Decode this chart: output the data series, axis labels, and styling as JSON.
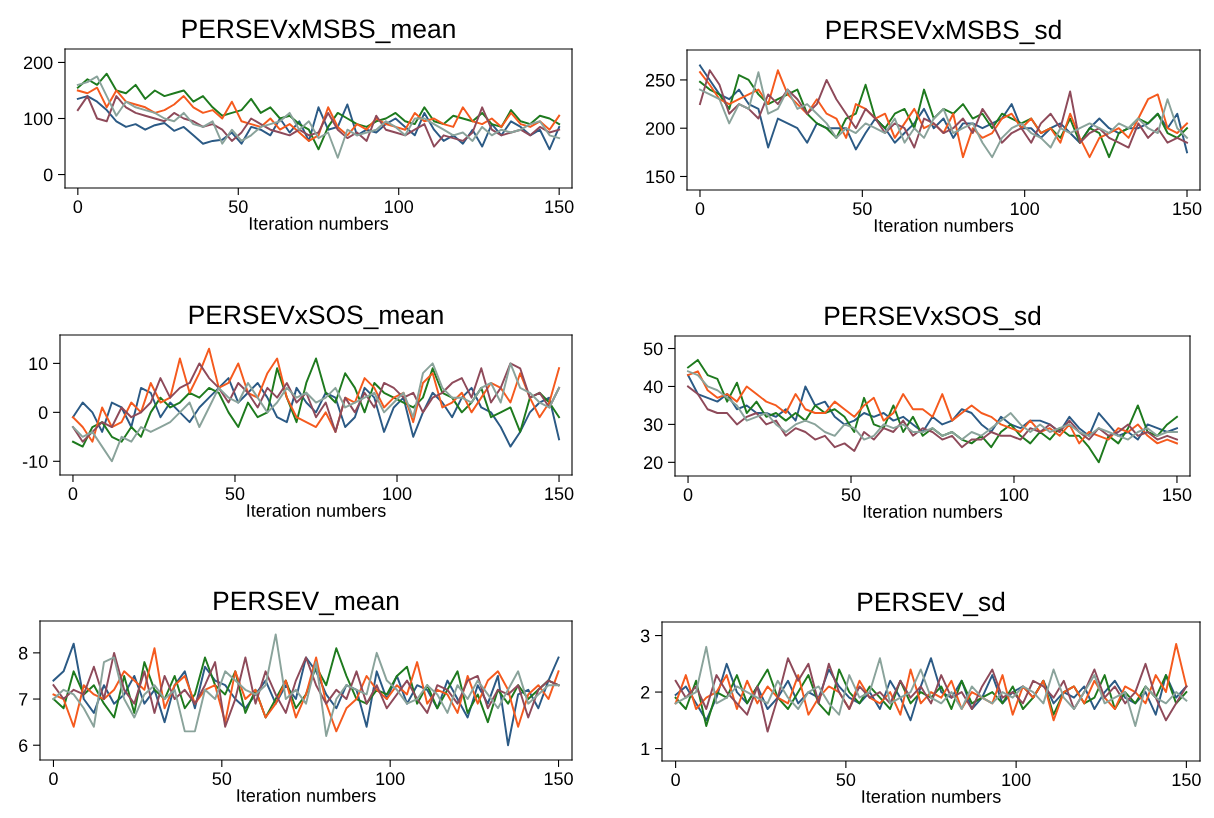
{
  "chart_data": [
    {
      "type": "line",
      "title": "PERSEVxMSBS_mean",
      "xlabel": "Iteration numbers",
      "xlim": [
        -4,
        154
      ],
      "xticks": [
        0,
        50,
        100,
        150
      ],
      "ylim": [
        -24,
        224
      ],
      "yticks": [
        0,
        100,
        200
      ],
      "line_style": "solid",
      "marker": "none",
      "x": [
        0,
        3,
        6,
        9,
        12,
        15,
        18,
        21,
        24,
        27,
        30,
        33,
        36,
        39,
        42,
        45,
        48,
        51,
        54,
        57,
        60,
        63,
        66,
        69,
        72,
        75,
        78,
        81,
        84,
        87,
        90,
        93,
        96,
        99,
        102,
        105,
        108,
        111,
        114,
        117,
        120,
        123,
        126,
        129,
        132,
        135,
        138,
        141,
        144,
        147,
        150
      ],
      "series": [
        {
          "color": "#2b5a85",
          "values": [
            135,
            140,
            130,
            115,
            95,
            85,
            90,
            80,
            88,
            92,
            78,
            85,
            70,
            55,
            60,
            62,
            75,
            55,
            85,
            80,
            70,
            100,
            75,
            95,
            60,
            120,
            80,
            85,
            125,
            70,
            80,
            75,
            90,
            100,
            85,
            70,
            110,
            80,
            60,
            70,
            55,
            80,
            50,
            90,
            70,
            95,
            85,
            70,
            80,
            45,
            85
          ]
        },
        {
          "color": "#1e7a1e",
          "values": [
            155,
            170,
            160,
            180,
            150,
            145,
            160,
            135,
            150,
            140,
            145,
            150,
            130,
            140,
            120,
            105,
            110,
            115,
            135,
            110,
            120,
            100,
            105,
            90,
            80,
            45,
            85,
            110,
            100,
            90,
            85,
            95,
            100,
            110,
            95,
            90,
            120,
            95,
            90,
            105,
            100,
            95,
            110,
            90,
            85,
            115,
            95,
            90,
            105,
            100,
            90
          ]
        },
        {
          "color": "#f55a1e",
          "values": [
            150,
            145,
            155,
            120,
            150,
            130,
            125,
            120,
            110,
            115,
            125,
            140,
            120,
            110,
            115,
            100,
            130,
            95,
            90,
            85,
            100,
            80,
            90,
            75,
            60,
            70,
            120,
            85,
            70,
            90,
            80,
            100,
            90,
            85,
            80,
            110,
            95,
            100,
            90,
            85,
            120,
            95,
            90,
            100,
            85,
            110,
            90,
            85,
            95,
            80,
            105
          ]
        },
        {
          "color": "#8e4a5a",
          "values": [
            115,
            140,
            100,
            95,
            140,
            120,
            110,
            105,
            100,
            95,
            110,
            100,
            95,
            85,
            90,
            80,
            60,
            75,
            100,
            90,
            80,
            75,
            70,
            80,
            70,
            75,
            110,
            80,
            65,
            75,
            60,
            105,
            80,
            75,
            70,
            80,
            90,
            50,
            70,
            65,
            60,
            75,
            120,
            80,
            70,
            75,
            80,
            70,
            85,
            75,
            80
          ]
        },
        {
          "color": "#8aa39b",
          "values": [
            160,
            165,
            175,
            140,
            105,
            130,
            120,
            115,
            110,
            100,
            95,
            110,
            90,
            85,
            95,
            55,
            80,
            60,
            70,
            85,
            90,
            95,
            110,
            80,
            95,
            65,
            75,
            30,
            80,
            70,
            75,
            80,
            95,
            85,
            70,
            100,
            100,
            90,
            80,
            70,
            75,
            60,
            85,
            70,
            80,
            75,
            80,
            90,
            95,
            70,
            65
          ]
        }
      ]
    },
    {
      "type": "line",
      "title": "PERSEVxMSBS_sd",
      "xlabel": "Iteration numbers",
      "xlim": [
        -4,
        154
      ],
      "xticks": [
        0,
        50,
        100,
        150
      ],
      "ylim": [
        136,
        281
      ],
      "yticks": [
        150,
        200,
        250
      ],
      "line_style": "solid",
      "marker": "none",
      "x": [
        0,
        3,
        6,
        9,
        12,
        15,
        18,
        21,
        24,
        27,
        30,
        33,
        36,
        39,
        42,
        45,
        48,
        51,
        54,
        57,
        60,
        63,
        66,
        69,
        72,
        75,
        78,
        81,
        84,
        87,
        90,
        93,
        96,
        99,
        102,
        105,
        108,
        111,
        114,
        117,
        120,
        123,
        126,
        129,
        132,
        135,
        138,
        141,
        144,
        147,
        150
      ],
      "series": [
        {
          "color": "#2b5a85",
          "values": [
            265,
            250,
            235,
            230,
            240,
            225,
            220,
            180,
            210,
            205,
            200,
            185,
            205,
            200,
            200,
            200,
            178,
            195,
            210,
            200,
            185,
            195,
            205,
            220,
            200,
            210,
            190,
            205,
            205,
            200,
            205,
            210,
            225,
            200,
            200,
            190,
            200,
            205,
            195,
            185,
            200,
            210,
            200,
            195,
            200,
            200,
            205,
            215,
            200,
            215,
            175
          ]
        },
        {
          "color": "#1e7a1e",
          "values": [
            248,
            240,
            235,
            220,
            255,
            250,
            235,
            225,
            230,
            235,
            240,
            215,
            205,
            200,
            190,
            210,
            215,
            245,
            210,
            200,
            215,
            220,
            200,
            240,
            210,
            220,
            215,
            225,
            210,
            215,
            200,
            215,
            210,
            205,
            210,
            195,
            200,
            190,
            210,
            185,
            200,
            195,
            170,
            195,
            200,
            210,
            205,
            215,
            195,
            190,
            200
          ]
        },
        {
          "color": "#f55a1e",
          "values": [
            258,
            245,
            230,
            225,
            230,
            235,
            240,
            225,
            260,
            235,
            225,
            215,
            230,
            215,
            210,
            190,
            225,
            220,
            210,
            215,
            190,
            205,
            220,
            200,
            205,
            195,
            215,
            170,
            200,
            190,
            195,
            210,
            215,
            200,
            210,
            195,
            200,
            185,
            215,
            190,
            170,
            190,
            195,
            200,
            190,
            210,
            230,
            235,
            200,
            195,
            205
          ]
        },
        {
          "color": "#8e4a5a",
          "values": [
            225,
            260,
            245,
            215,
            225,
            220,
            210,
            235,
            225,
            240,
            230,
            215,
            225,
            250,
            230,
            215,
            200,
            220,
            210,
            195,
            205,
            200,
            180,
            210,
            205,
            195,
            200,
            210,
            195,
            220,
            205,
            185,
            195,
            200,
            185,
            205,
            215,
            200,
            238,
            185,
            195,
            200,
            190,
            185,
            180,
            205,
            190,
            200,
            185,
            190,
            185
          ]
        },
        {
          "color": "#8aa39b",
          "values": [
            240,
            235,
            230,
            205,
            225,
            220,
            258,
            215,
            220,
            240,
            220,
            225,
            215,
            205,
            190,
            200,
            195,
            205,
            200,
            195,
            210,
            185,
            200,
            190,
            210,
            220,
            195,
            200,
            205,
            185,
            170,
            190,
            200,
            205,
            195,
            190,
            180,
            200,
            195,
            200,
            205,
            200,
            195,
            205,
            200,
            210,
            200,
            195,
            230,
            200,
            190
          ]
        }
      ]
    },
    {
      "type": "line",
      "title": "PERSEVxSOS_mean",
      "xlabel": "Iteration numbers",
      "xlim": [
        -4,
        154
      ],
      "xticks": [
        0,
        50,
        100,
        150
      ],
      "ylim": [
        -12.8,
        15.8
      ],
      "yticks": [
        -10,
        0,
        10
      ],
      "line_style": "solid",
      "marker": "none",
      "x": [
        0,
        3,
        6,
        9,
        12,
        15,
        18,
        21,
        24,
        27,
        30,
        33,
        36,
        39,
        42,
        45,
        48,
        51,
        54,
        57,
        60,
        63,
        66,
        69,
        72,
        75,
        78,
        81,
        84,
        87,
        90,
        93,
        96,
        99,
        102,
        105,
        108,
        111,
        114,
        117,
        120,
        123,
        126,
        129,
        132,
        135,
        138,
        141,
        144,
        147,
        150
      ],
      "series": [
        {
          "color": "#2b5a85",
          "values": [
            -1,
            2,
            0,
            -4,
            2,
            1,
            -3,
            5,
            4,
            -1,
            2,
            0,
            -2,
            1,
            3,
            5,
            7,
            2,
            4,
            6,
            3,
            -1,
            -2,
            5,
            2,
            0,
            4,
            3,
            -3,
            -1,
            5,
            3,
            -4,
            1,
            3,
            -5,
            0,
            4,
            2,
            -1,
            3,
            5,
            1,
            0,
            -3,
            -7,
            -4,
            0,
            2,
            3,
            -5.5
          ]
        },
        {
          "color": "#1e7a1e",
          "values": [
            -6,
            -7,
            -3,
            -2,
            -5,
            -6,
            -3,
            -5,
            0,
            3,
            1,
            2,
            4,
            3,
            5,
            4,
            0,
            -3,
            2,
            -1,
            0,
            9,
            3,
            -2,
            6,
            11,
            4,
            2,
            8,
            5,
            0,
            6,
            4,
            3,
            2,
            1,
            3,
            9,
            4,
            3,
            0,
            2,
            5,
            -1,
            0,
            1,
            -4,
            3,
            4,
            2,
            -1
          ]
        },
        {
          "color": "#f55a1e",
          "values": [
            -1,
            -3,
            -6,
            1,
            -3,
            -2,
            2,
            0,
            6,
            2,
            3,
            11,
            4,
            8,
            13,
            5,
            6,
            10,
            4,
            3,
            8,
            11,
            3,
            -1,
            -2,
            -3,
            0,
            -4,
            3,
            2,
            7,
            5,
            1,
            3,
            4,
            -2,
            6,
            8,
            1,
            2,
            4,
            0,
            3,
            6,
            5,
            2,
            8,
            3,
            -1,
            2,
            9
          ]
        },
        {
          "color": "#8e4a5a",
          "values": [
            -3,
            -6,
            -4,
            -2,
            -3,
            1,
            -1,
            0,
            2,
            7,
            3,
            5,
            6,
            10,
            7,
            5,
            2,
            6,
            4,
            1,
            5,
            3,
            6,
            2,
            4,
            -1,
            2,
            -4,
            3,
            0,
            4,
            1,
            6,
            5,
            3,
            4,
            0,
            3,
            4,
            6,
            7,
            3,
            9,
            2,
            5,
            10,
            9,
            3,
            4,
            1,
            5
          ]
        },
        {
          "color": "#8aa39b",
          "values": [
            -3,
            -5,
            -4,
            -7,
            -10,
            -5,
            -6,
            -3,
            -4,
            -3,
            -2,
            0,
            2,
            -3,
            1,
            5,
            3,
            2,
            6,
            3,
            0,
            2,
            5,
            3,
            4,
            2,
            3,
            5,
            1,
            2,
            3,
            4,
            0,
            2,
            4,
            -1,
            8,
            10,
            5,
            3,
            3,
            2,
            5,
            6,
            2,
            10,
            5,
            4,
            2,
            1,
            5
          ]
        }
      ]
    },
    {
      "type": "line",
      "title": "PERSEVxSOS_sd",
      "xlabel": "Iteration numbers",
      "xlim": [
        -4,
        154
      ],
      "xticks": [
        0,
        50,
        100,
        150
      ],
      "ylim": [
        16.4,
        53.3
      ],
      "yticks": [
        20,
        30,
        40,
        50
      ],
      "line_style": "solid",
      "marker": "none",
      "x": [
        0,
        3,
        6,
        9,
        12,
        15,
        18,
        21,
        24,
        27,
        30,
        33,
        36,
        39,
        42,
        45,
        48,
        51,
        54,
        57,
        60,
        63,
        66,
        69,
        72,
        75,
        78,
        81,
        84,
        87,
        90,
        93,
        96,
        99,
        102,
        105,
        108,
        111,
        114,
        117,
        120,
        123,
        126,
        129,
        132,
        135,
        138,
        141,
        144,
        147,
        150
      ],
      "series": [
        {
          "color": "#2b5a85",
          "values": [
            43,
            38,
            37,
            36,
            38,
            34,
            35,
            33,
            33,
            32,
            34,
            31,
            40,
            35,
            36,
            32,
            30,
            31,
            33,
            32,
            33,
            31,
            32,
            30,
            28,
            32,
            30,
            31,
            34,
            33,
            30,
            28,
            32,
            30,
            29,
            31,
            31,
            30,
            28,
            32,
            29,
            27,
            33,
            30,
            27,
            28,
            26,
            30,
            29,
            28,
            29
          ]
        },
        {
          "color": "#1e7a1e",
          "values": [
            45,
            47,
            43,
            42,
            36,
            41,
            33,
            36,
            32,
            33,
            31,
            33,
            31,
            35,
            33,
            34,
            32,
            28,
            37,
            30,
            29,
            35,
            28,
            32,
            27,
            29,
            27,
            28,
            26,
            25,
            27,
            24,
            28,
            30,
            27,
            25,
            28,
            26,
            29,
            27,
            27,
            24,
            20,
            27,
            25,
            29,
            35,
            28,
            27,
            30,
            32
          ]
        },
        {
          "color": "#f55a1e",
          "values": [
            43,
            44,
            39,
            37,
            38,
            36,
            40,
            38,
            36,
            35,
            33,
            38,
            34,
            33,
            33,
            36,
            34,
            32,
            35,
            37,
            31,
            33,
            38,
            34,
            34,
            32,
            38,
            31,
            33,
            35,
            33,
            32,
            30,
            29,
            28,
            31,
            28,
            29,
            27,
            30,
            25,
            28,
            27,
            26,
            29,
            28,
            30,
            27,
            25,
            26,
            25
          ]
        },
        {
          "color": "#8e4a5a",
          "values": [
            40,
            38,
            34,
            33,
            33,
            30,
            32,
            33,
            30,
            31,
            27,
            29,
            28,
            26,
            27,
            24,
            25,
            23,
            28,
            26,
            29,
            28,
            31,
            27,
            29,
            28,
            26,
            27,
            24,
            26,
            26,
            28,
            27,
            27,
            26,
            29,
            28,
            30,
            28,
            31,
            28,
            26,
            29,
            27,
            28,
            30,
            27,
            28,
            26,
            27,
            26
          ]
        },
        {
          "color": "#8aa39b",
          "values": [
            44,
            43,
            40,
            39,
            37,
            35,
            31,
            32,
            33,
            30,
            28,
            30,
            31,
            30,
            28,
            27,
            30,
            29,
            26,
            27,
            30,
            29,
            30,
            28,
            28,
            29,
            27,
            28,
            26,
            28,
            27,
            29,
            31,
            33,
            30,
            28,
            30,
            28,
            29,
            30,
            28,
            27,
            29,
            28,
            27,
            26,
            28,
            29,
            27,
            28,
            28
          ]
        }
      ]
    },
    {
      "type": "line",
      "title": "PERSEV_mean",
      "xlabel": "Iteration numbers",
      "xlim": [
        -4,
        154
      ],
      "xticks": [
        0,
        50,
        100,
        150
      ],
      "ylim": [
        5.68,
        8.69
      ],
      "yticks": [
        6,
        7,
        8
      ],
      "line_style": "solid",
      "marker": "none",
      "x": [
        0,
        3,
        6,
        9,
        12,
        15,
        18,
        21,
        24,
        27,
        30,
        33,
        36,
        39,
        42,
        45,
        48,
        51,
        54,
        57,
        60,
        63,
        66,
        69,
        72,
        75,
        78,
        81,
        84,
        87,
        90,
        93,
        96,
        99,
        102,
        105,
        108,
        111,
        114,
        117,
        120,
        123,
        126,
        129,
        132,
        135,
        138,
        141,
        144,
        147,
        150
      ],
      "series": [
        {
          "color": "#2b5a85",
          "values": [
            7.4,
            7.6,
            8.2,
            7.0,
            6.7,
            7.3,
            6.9,
            7.1,
            7.5,
            6.9,
            7.2,
            6.5,
            7.3,
            7.6,
            6.8,
            7.7,
            7.4,
            7.3,
            7.0,
            6.8,
            7.1,
            7.4,
            6.9,
            7.3,
            7.0,
            7.9,
            7.6,
            7.1,
            6.8,
            7.3,
            7.2,
            6.4,
            7.6,
            7.0,
            7.5,
            6.9,
            7.3,
            7.2,
            6.8,
            7.4,
            7.0,
            6.6,
            7.3,
            6.9,
            7.5,
            6.0,
            7.1,
            7.2,
            6.8,
            7.4,
            7.9
          ]
        },
        {
          "color": "#1e7a1e",
          "values": [
            7.0,
            6.8,
            7.6,
            7.1,
            7.3,
            6.9,
            6.6,
            7.5,
            6.7,
            7.8,
            7.2,
            7.0,
            7.5,
            6.8,
            7.1,
            7.9,
            7.3,
            7.1,
            7.6,
            6.7,
            7.2,
            6.6,
            7.0,
            7.4,
            6.8,
            7.1,
            7.7,
            7.3,
            8.1,
            7.5,
            7.0,
            6.9,
            7.2,
            7.1,
            7.5,
            7.7,
            6.9,
            7.3,
            6.8,
            7.2,
            7.6,
            6.7,
            7.1,
            6.5,
            7.2,
            6.9,
            7.3,
            7.0,
            7.2,
            7.4,
            7.3
          ]
        },
        {
          "color": "#f55a1e",
          "values": [
            7.1,
            7.0,
            6.4,
            7.3,
            7.1,
            7.0,
            7.2,
            7.6,
            7.4,
            7.2,
            8.1,
            6.8,
            7.3,
            7.5,
            6.9,
            7.2,
            7.3,
            6.5,
            7.6,
            7.0,
            7.2,
            6.6,
            6.9,
            7.4,
            6.6,
            7.1,
            7.9,
            6.9,
            6.3,
            6.8,
            7.0,
            7.5,
            7.2,
            7.0,
            7.3,
            7.1,
            7.8,
            6.9,
            7.2,
            7.1,
            6.7,
            7.5,
            6.9,
            7.4,
            7.6,
            7.2,
            6.4,
            7.1,
            7.3,
            7.0,
            7.6
          ]
        },
        {
          "color": "#8e4a5a",
          "values": [
            7.3,
            7.0,
            7.2,
            7.1,
            7.7,
            7.0,
            8.0,
            7.2,
            6.9,
            7.6,
            6.7,
            7.5,
            7.0,
            7.2,
            6.9,
            7.3,
            7.8,
            6.4,
            7.0,
            7.9,
            6.9,
            7.6,
            7.1,
            6.7,
            7.4,
            7.9,
            7.3,
            6.9,
            7.2,
            7.0,
            7.6,
            6.9,
            7.3,
            6.8,
            7.1,
            7.4,
            7.0,
            6.7,
            7.3,
            7.2,
            6.9,
            7.4,
            7.5,
            6.8,
            7.2,
            7.1,
            7.3,
            6.6,
            7.2,
            7.4,
            7.3
          ]
        },
        {
          "color": "#8aa39b",
          "values": [
            7.0,
            7.2,
            7.1,
            6.8,
            6.4,
            7.8,
            7.9,
            7.0,
            6.6,
            7.1,
            7.3,
            7.0,
            7.2,
            6.3,
            6.3,
            7.2,
            7.0,
            7.6,
            7.4,
            7.2,
            7.1,
            7.3,
            8.4,
            7.0,
            7.2,
            6.9,
            7.8,
            6.2,
            7.0,
            7.3,
            7.2,
            7.1,
            8.0,
            7.4,
            7.2,
            6.9,
            7.0,
            7.3,
            7.1,
            6.7,
            7.3,
            7.0,
            7.4,
            7.1,
            6.8,
            7.2,
            7.6,
            6.9,
            7.1,
            7.3,
            7.3
          ]
        }
      ]
    },
    {
      "type": "line",
      "title": "PERSEV_sd",
      "xlabel": "Iteration numbers",
      "xlim": [
        -4,
        154
      ],
      "xticks": [
        0,
        50,
        100,
        150
      ],
      "ylim": [
        0.78,
        3.24
      ],
      "yticks": [
        1,
        2,
        3
      ],
      "line_style": "solid",
      "marker": "none",
      "x": [
        0,
        3,
        6,
        9,
        12,
        15,
        18,
        21,
        24,
        27,
        30,
        33,
        36,
        39,
        42,
        45,
        48,
        51,
        54,
        57,
        60,
        63,
        66,
        69,
        72,
        75,
        78,
        81,
        84,
        87,
        90,
        93,
        96,
        99,
        102,
        105,
        108,
        111,
        114,
        117,
        120,
        123,
        126,
        129,
        132,
        135,
        138,
        141,
        144,
        147,
        150
      ],
      "series": [
        {
          "color": "#2b5a85",
          "values": [
            1.95,
            2.1,
            1.8,
            1.5,
            1.9,
            2.5,
            2.0,
            1.8,
            2.1,
            1.7,
            1.9,
            2.2,
            1.8,
            2.0,
            1.9,
            2.4,
            2.1,
            1.9,
            1.8,
            2.0,
            1.7,
            2.2,
            1.9,
            1.5,
            2.1,
            2.6,
            2.0,
            1.9,
            2.2,
            1.7,
            1.9,
            2.3,
            1.8,
            2.0,
            2.1,
            1.9,
            2.2,
            1.8,
            2.0,
            1.9,
            2.1,
            1.7,
            2.0,
            2.2,
            1.9,
            1.8,
            2.0,
            1.6,
            2.3,
            1.9,
            2.1
          ]
        },
        {
          "color": "#1e7a1e",
          "values": [
            1.9,
            1.7,
            2.2,
            1.4,
            2.0,
            1.9,
            2.3,
            1.8,
            2.1,
            2.4,
            1.9,
            1.7,
            2.0,
            2.3,
            1.8,
            1.6,
            2.4,
            2.0,
            1.8,
            2.1,
            1.9,
            1.7,
            2.2,
            1.8,
            2.0,
            1.9,
            2.1,
            1.7,
            2.2,
            1.8,
            1.9,
            2.0,
            1.8,
            2.1,
            1.7,
            1.9,
            2.2,
            1.6,
            2.0,
            2.1,
            1.8,
            1.9,
            2.3,
            1.7,
            2.0,
            1.8,
            2.1,
            1.9,
            2.3,
            1.8,
            2.0
          ]
        },
        {
          "color": "#f55a1e",
          "values": [
            1.8,
            2.3,
            1.7,
            1.9,
            2.0,
            2.3,
            1.7,
            2.2,
            1.8,
            2.1,
            1.9,
            1.8,
            2.3,
            1.6,
            1.9,
            2.1,
            2.0,
            1.7,
            2.2,
            1.9,
            1.8,
            2.0,
            1.6,
            2.4,
            1.8,
            2.0,
            1.9,
            2.2,
            1.7,
            2.0,
            1.9,
            1.8,
            2.3,
            1.6,
            2.1,
            1.9,
            2.2,
            1.5,
            2.0,
            2.1,
            1.8,
            2.2,
            1.9,
            1.7,
            2.1,
            2.0,
            1.8,
            2.3,
            2.0,
            2.85,
            2.1
          ]
        },
        {
          "color": "#8e4a5a",
          "values": [
            2.2,
            1.9,
            2.1,
            1.7,
            2.3,
            2.0,
            1.8,
            1.6,
            2.1,
            1.3,
            1.9,
            2.6,
            2.2,
            2.5,
            1.8,
            2.5,
            2.0,
            1.7,
            2.1,
            1.9,
            2.0,
            1.8,
            2.2,
            1.9,
            2.1,
            1.8,
            2.3,
            1.9,
            2.0,
            1.7,
            2.1,
            2.4,
            1.9,
            2.0,
            1.8,
            2.2,
            2.1,
            1.9,
            2.2,
            1.7,
            2.0,
            2.4,
            1.9,
            2.1,
            1.8,
            2.0,
            2.5,
            1.9,
            1.5,
            1.8,
            2.1
          ]
        },
        {
          "color": "#8aa39b",
          "values": [
            1.8,
            1.9,
            2.0,
            2.8,
            1.8,
            1.9,
            2.1,
            2.0,
            1.9,
            1.8,
            2.2,
            1.9,
            1.7,
            2.0,
            2.1,
            1.8,
            1.6,
            2.3,
            1.9,
            2.0,
            2.6,
            1.8,
            1.9,
            2.0,
            2.4,
            1.9,
            1.8,
            2.0,
            1.7,
            2.1,
            1.9,
            1.8,
            2.0,
            1.9,
            2.1,
            2.0,
            1.8,
            2.4,
            1.9,
            1.7,
            2.0,
            2.3,
            1.8,
            1.9,
            2.0,
            1.4,
            2.1,
            1.9,
            1.8,
            2.0,
            1.85
          ]
        }
      ]
    }
  ]
}
